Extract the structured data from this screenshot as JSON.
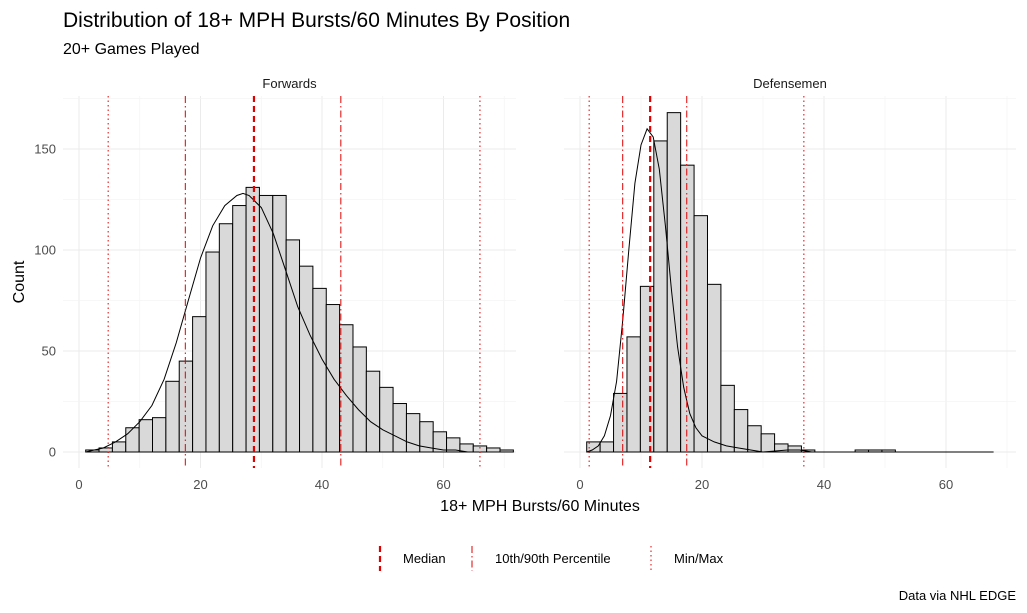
{
  "chart_data": {
    "type": "bar",
    "title": "Distribution of 18+ MPH Bursts/60 Minutes By Position",
    "subtitle": "20+ Games Played",
    "xlabel": "18+ MPH Bursts/60 Minutes",
    "ylabel": "Count",
    "caption": "Data via NHL EDGE",
    "xlim": [
      0,
      68
    ],
    "ylim": [
      0,
      175
    ],
    "x_ticks": [
      "0",
      "20",
      "40",
      "60"
    ],
    "y_ticks": [
      "0",
      "50",
      "100",
      "150"
    ],
    "grid": true,
    "legend_position": "bottom",
    "legend": [
      {
        "label": "Median",
        "style": "dashed",
        "color": "#e00000"
      },
      {
        "label": "10th/90th Percentile",
        "style": "dotdash",
        "color": "#e00000"
      },
      {
        "label": "Min/Max",
        "style": "dotted",
        "color": "#e00000"
      }
    ],
    "panels": [
      {
        "name": "Forwards",
        "bin_width": 2.2,
        "bin_start": 1.1,
        "counts": [
          1,
          2,
          5,
          12,
          16,
          17,
          35,
          45,
          67,
          99,
          113,
          122,
          131,
          127,
          127,
          105,
          92,
          81,
          73,
          63,
          52,
          40,
          32,
          24,
          19,
          15,
          10,
          7,
          4,
          3,
          2,
          1
        ],
        "min": 4.8,
        "p10": 17.5,
        "median": 28.8,
        "p90": 43.1,
        "max": 66.0,
        "density": [
          [
            1.1,
            0
          ],
          [
            2.5,
            1
          ],
          [
            4,
            2
          ],
          [
            6,
            5
          ],
          [
            8,
            9
          ],
          [
            10,
            15
          ],
          [
            12,
            23
          ],
          [
            14,
            36
          ],
          [
            16,
            54
          ],
          [
            18,
            75
          ],
          [
            20,
            96
          ],
          [
            22,
            112
          ],
          [
            24,
            122
          ],
          [
            26,
            127
          ],
          [
            27,
            128
          ],
          [
            28,
            127
          ],
          [
            30,
            121
          ],
          [
            32,
            108
          ],
          [
            34,
            90
          ],
          [
            36,
            72
          ],
          [
            38,
            58
          ],
          [
            40,
            46
          ],
          [
            42,
            36
          ],
          [
            44,
            28
          ],
          [
            46,
            21
          ],
          [
            48,
            15
          ],
          [
            50,
            11
          ],
          [
            52,
            8
          ],
          [
            54,
            5
          ],
          [
            56,
            3
          ],
          [
            58,
            2
          ],
          [
            60,
            1
          ],
          [
            62,
            1
          ],
          [
            64,
            0
          ]
        ]
      },
      {
        "name": "Defensemen",
        "bin_width": 2.2,
        "bin_start": 1.1,
        "counts": [
          5,
          5,
          29,
          57,
          82,
          154,
          168,
          142,
          117,
          83,
          33,
          21,
          13,
          9,
          4,
          3,
          1,
          0,
          0,
          0,
          1,
          1,
          1,
          0,
          0,
          0,
          0,
          0,
          0,
          0,
          0,
          0,
          0,
          0,
          0,
          0,
          0,
          0,
          0,
          0,
          0,
          0,
          0,
          0,
          0,
          0,
          0,
          0,
          0,
          0,
          0,
          0,
          0,
          0,
          0,
          0,
          0,
          0,
          0,
          0,
          0
        ],
        "min": 1.5,
        "p10": 7.0,
        "median": 11.5,
        "p90": 17.5,
        "max": 36.7,
        "density": [
          [
            1.1,
            0
          ],
          [
            2,
            1
          ],
          [
            3,
            3
          ],
          [
            4,
            8
          ],
          [
            5,
            18
          ],
          [
            6,
            35
          ],
          [
            7,
            65
          ],
          [
            8,
            100
          ],
          [
            9,
            133
          ],
          [
            10,
            152
          ],
          [
            11,
            160
          ],
          [
            12,
            156
          ],
          [
            13,
            140
          ],
          [
            14,
            112
          ],
          [
            15,
            80
          ],
          [
            16,
            52
          ],
          [
            17,
            32
          ],
          [
            18,
            19
          ],
          [
            19,
            12
          ],
          [
            20,
            8
          ],
          [
            22,
            5
          ],
          [
            24,
            3
          ],
          [
            26,
            2
          ],
          [
            28,
            1
          ],
          [
            30,
            0
          ],
          [
            34,
            1
          ],
          [
            36,
            1
          ],
          [
            38,
            0
          ],
          [
            67.8,
            0
          ]
        ]
      }
    ]
  }
}
